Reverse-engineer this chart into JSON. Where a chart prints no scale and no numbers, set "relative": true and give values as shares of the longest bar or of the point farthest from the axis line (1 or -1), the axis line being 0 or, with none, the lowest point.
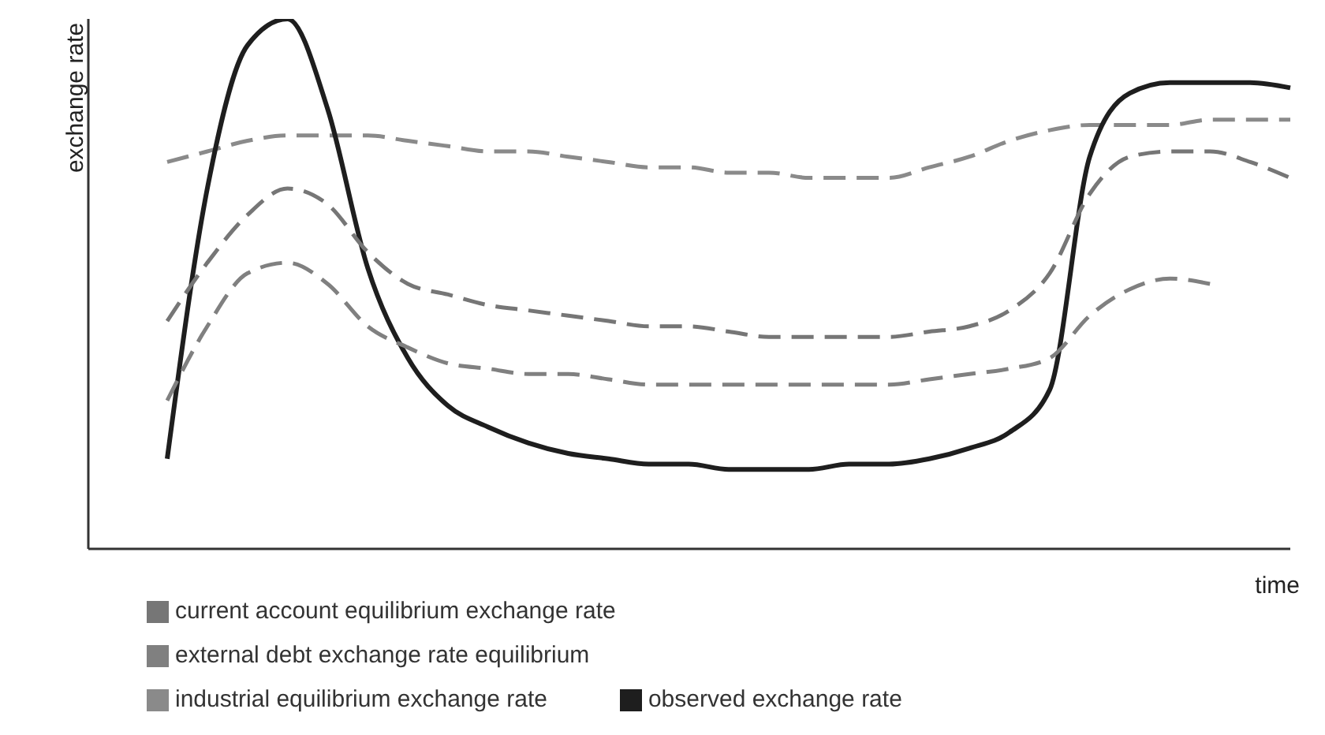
{
  "chart_data": {
    "type": "line",
    "relative": true,
    "xlabel": "time",
    "ylabel": "exchange rate",
    "legend": "bottom",
    "grid": false,
    "marker": "none",
    "categories": [
      null,
      null,
      null,
      null,
      null,
      null,
      null,
      null,
      null,
      null,
      null,
      null,
      null,
      null,
      null,
      null,
      null,
      null,
      null,
      null,
      null,
      null,
      null,
      null,
      null,
      null,
      null,
      null,
      null
    ],
    "series": [
      {
        "name": "industrial equilibrium  exchange rate",
        "color": "#8a8a8a",
        "line_style": "dashed",
        "values": [
          0.73,
          0.75,
          0.77,
          0.78,
          0.78,
          0.78,
          0.77,
          0.76,
          0.75,
          0.75,
          0.74,
          0.73,
          0.72,
          0.72,
          0.71,
          0.71,
          0.7,
          0.7,
          0.7,
          0.72,
          0.74,
          0.77,
          0.79,
          0.8,
          0.8,
          0.8,
          0.81,
          0.81,
          0.81
        ]
      },
      {
        "name": "observed exchange rate",
        "color": "#1e1e1e",
        "line_style": "solid",
        "values": [
          0.17,
          0.68,
          0.95,
          1.0,
          0.83,
          0.53,
          0.36,
          0.27,
          0.23,
          0.2,
          0.18,
          0.17,
          0.16,
          0.16,
          0.15,
          0.15,
          0.15,
          0.16,
          0.16,
          0.17,
          0.19,
          0.22,
          0.3,
          0.74,
          0.86,
          0.88,
          0.88,
          0.88,
          0.87
        ]
      },
      {
        "name": "current account equilibrium  exchange rate",
        "color": "#767676",
        "line_style": "dashed",
        "values": [
          0.43,
          0.54,
          0.63,
          0.68,
          0.65,
          0.56,
          0.5,
          0.48,
          0.46,
          0.45,
          0.44,
          0.43,
          0.42,
          0.42,
          0.41,
          0.4,
          0.4,
          0.4,
          0.4,
          0.41,
          0.42,
          0.45,
          0.52,
          0.67,
          0.74,
          0.75,
          0.75,
          0.73,
          0.7
        ]
      },
      {
        "name": "external debt exchange rate equilibrium",
        "color": "#808080",
        "line_style": "dashed",
        "values": [
          0.28,
          0.42,
          0.52,
          0.54,
          0.5,
          0.42,
          0.38,
          0.35,
          0.34,
          0.33,
          0.33,
          0.32,
          0.31,
          0.31,
          0.31,
          0.31,
          0.31,
          0.31,
          0.31,
          0.32,
          0.33,
          0.34,
          0.36,
          0.44,
          0.49,
          0.51,
          0.5,
          null,
          null
        ]
      }
    ]
  }
}
